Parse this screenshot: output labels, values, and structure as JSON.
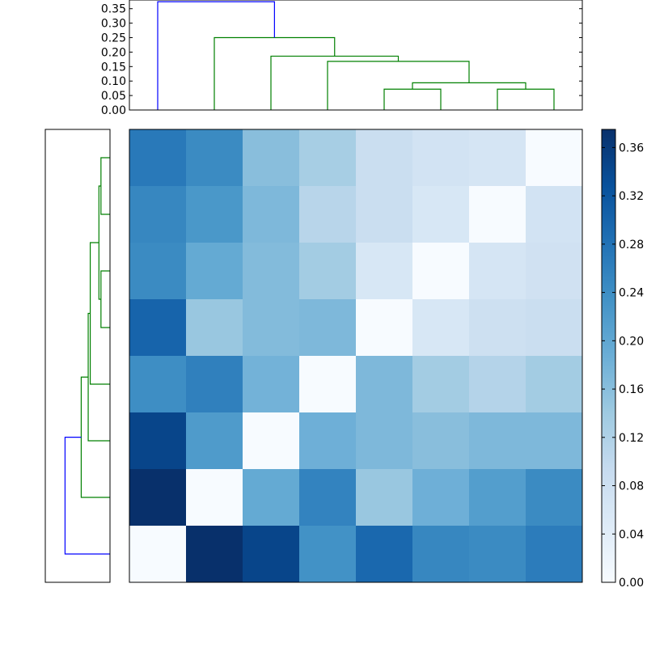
{
  "chart_data": [
    {
      "type": "heatmap",
      "title": "",
      "xlabel": "",
      "ylabel": "",
      "rows": 8,
      "cols": 8,
      "matrix": [
        [
          0.27,
          0.245,
          0.16,
          0.13,
          0.085,
          0.07,
          0.065,
          0.0
        ],
        [
          0.25,
          0.225,
          0.17,
          0.11,
          0.085,
          0.06,
          0.0,
          0.07
        ],
        [
          0.245,
          0.195,
          0.165,
          0.135,
          0.06,
          0.0,
          0.065,
          0.075
        ],
        [
          0.3,
          0.145,
          0.165,
          0.17,
          0.0,
          0.06,
          0.08,
          0.085
        ],
        [
          0.24,
          0.26,
          0.18,
          0.0,
          0.17,
          0.135,
          0.115,
          0.135
        ],
        [
          0.345,
          0.22,
          0.0,
          0.185,
          0.17,
          0.16,
          0.17,
          0.17
        ],
        [
          0.38,
          0.0,
          0.195,
          0.255,
          0.145,
          0.185,
          0.215,
          0.245
        ],
        [
          0.0,
          0.38,
          0.345,
          0.235,
          0.295,
          0.25,
          0.245,
          0.265
        ]
      ],
      "colorbar": {
        "colormap": "Blues",
        "vmin": 0.0,
        "vmax": 0.375,
        "tick_labels": [
          "0.00",
          "0.04",
          "0.08",
          "0.12",
          "0.16",
          "0.20",
          "0.24",
          "0.28",
          "0.32",
          "0.36"
        ],
        "tick_values": [
          0.0,
          0.04,
          0.08,
          0.12,
          0.16,
          0.2,
          0.24,
          0.28,
          0.32,
          0.36
        ]
      }
    },
    {
      "type": "dendrogram",
      "orientation": "top",
      "ylim": [
        0,
        0.38
      ],
      "tick_labels": [
        "0.00",
        "0.05",
        "0.10",
        "0.15",
        "0.20",
        "0.25",
        "0.30",
        "0.35"
      ],
      "tick_values": [
        0.0,
        0.05,
        0.1,
        0.15,
        0.2,
        0.25,
        0.3,
        0.35
      ],
      "links": [
        {
          "xs": [
            4,
            4,
            5,
            5
          ],
          "ys": [
            0.0,
            0.072,
            0.072,
            0.0
          ],
          "color": "#008000"
        },
        {
          "xs": [
            6,
            6,
            7,
            7
          ],
          "ys": [
            0.0,
            0.072,
            0.072,
            0.0
          ],
          "color": "#008000"
        },
        {
          "xs": [
            4.5,
            4.5,
            6.5,
            6.5
          ],
          "ys": [
            0.072,
            0.094,
            0.094,
            0.072
          ],
          "color": "#008000"
        },
        {
          "xs": [
            3,
            3,
            5.5,
            5.5
          ],
          "ys": [
            0.0,
            0.168,
            0.168,
            0.094
          ],
          "color": "#008000"
        },
        {
          "xs": [
            2,
            2,
            4.25,
            4.25
          ],
          "ys": [
            0.0,
            0.186,
            0.186,
            0.168
          ],
          "color": "#008000"
        },
        {
          "xs": [
            1,
            1,
            3.125,
            3.125
          ],
          "ys": [
            0.0,
            0.25,
            0.25,
            0.186
          ],
          "color": "#008000"
        },
        {
          "xs": [
            0,
            0,
            2.0625,
            2.0625
          ],
          "ys": [
            0.0,
            0.374,
            0.374,
            0.25
          ],
          "color": "#0000ff"
        }
      ]
    },
    {
      "type": "dendrogram",
      "orientation": "left",
      "links": [
        {
          "rows": [
            0,
            0,
            1,
            1
          ],
          "d": [
            0.0,
            0.053,
            0.053,
            0.0
          ],
          "color": "#008000"
        },
        {
          "rows": [
            2,
            2,
            3,
            3
          ],
          "d": [
            0.0,
            0.053,
            0.053,
            0.0
          ],
          "color": "#008000"
        },
        {
          "rows": [
            0.5,
            0.5,
            2.5,
            2.5
          ],
          "d": [
            0.053,
            0.065,
            0.065,
            0.053
          ],
          "color": "#008000"
        },
        {
          "rows": [
            1.5,
            1.5,
            4,
            4
          ],
          "d": [
            0.065,
            0.116,
            0.116,
            0.0
          ],
          "color": "#008000"
        },
        {
          "rows": [
            2.75,
            2.75,
            5,
            5
          ],
          "d": [
            0.116,
            0.128,
            0.128,
            0.0
          ],
          "color": "#008000"
        },
        {
          "rows": [
            3.875,
            3.875,
            6,
            6
          ],
          "d": [
            0.128,
            0.169,
            0.169,
            0.0
          ],
          "color": "#008000"
        },
        {
          "rows": [
            4.9375,
            4.9375,
            7,
            7
          ],
          "d": [
            0.169,
            0.264,
            0.264,
            0.0
          ],
          "color": "#0000ff"
        }
      ]
    }
  ]
}
